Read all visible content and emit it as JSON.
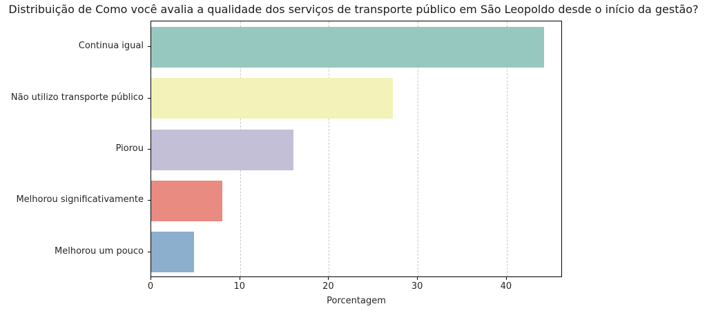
{
  "title": "Distribuição de Como você avalia a qualidade dos serviços de transporte público em São Leopoldo desde o início da gestão?",
  "chart_data": {
    "type": "bar",
    "orientation": "horizontal",
    "title": "Distribuição de Como você avalia a qualidade dos serviços de transporte público em São Leopoldo desde o início da gestão?",
    "categories": [
      "Continua igual",
      "Não utilizo transporte público",
      "Piorou",
      "Melhorou significativamente",
      "Melhorou um pouco"
    ],
    "values": [
      44.2,
      27.2,
      16.0,
      8.0,
      4.8
    ],
    "bar_colors": [
      "#96c8c0",
      "#f3f3b9",
      "#c3bfd7",
      "#e98b81",
      "#8bafcc"
    ],
    "xlabel": "Porcentagem",
    "ylabel": "",
    "xlim": [
      0,
      46.3
    ],
    "xticks": [
      0,
      10,
      20,
      30,
      40
    ],
    "grid": "vertical-dashed",
    "gridline_color": "#c7c7c7",
    "legend": null
  }
}
